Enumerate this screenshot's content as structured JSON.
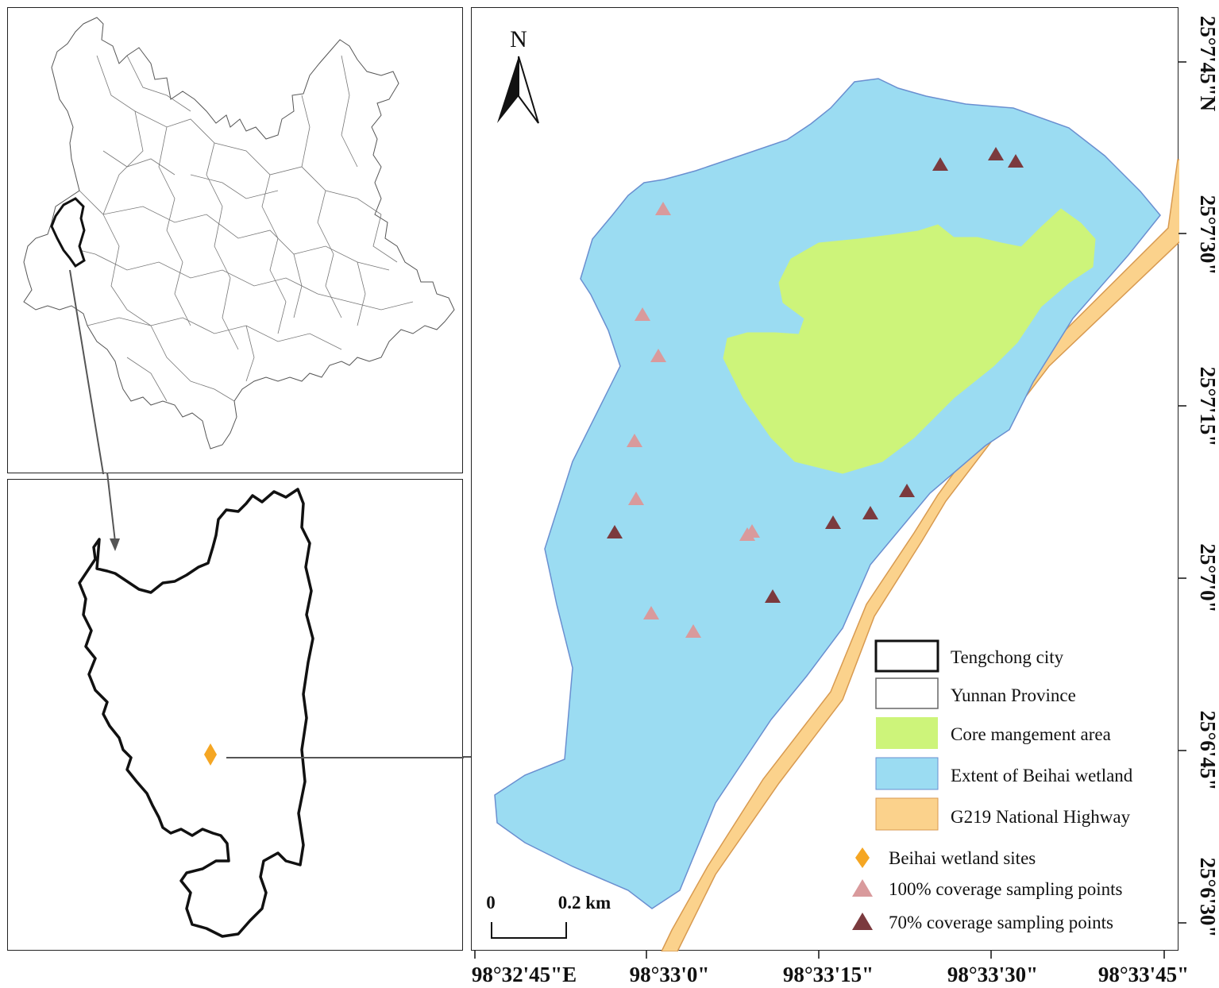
{
  "legend": {
    "items": [
      {
        "label": "Tengchong city",
        "swatch": "#ffffff",
        "border": "#111111"
      },
      {
        "label": "Yunnan Province",
        "swatch": "#ffffff",
        "border": "#666666"
      },
      {
        "label": "Core mangement area",
        "swatch": "#cdf47a",
        "border": "#cdf47a"
      },
      {
        "label": "Extent of Beihai wetland",
        "swatch": "#9bdcf2",
        "border": "#6a8fd0"
      },
      {
        "label": "G219 National Highway",
        "swatch": "#fbd28c",
        "border": "#d89a50"
      }
    ],
    "symbols": [
      {
        "label": "Beihai wetland sites",
        "shape": "diamond",
        "color": "#f5a623"
      },
      {
        "label": "100% coverage sampling points",
        "shape": "triangle",
        "color": "#d99a9c"
      },
      {
        "label": "70% coverage sampling points",
        "shape": "triangle",
        "color": "#7b3a3e"
      }
    ]
  },
  "north_arrow": {
    "label": "N"
  },
  "scale_bar": {
    "start": "0",
    "end": "0.2 km"
  },
  "axes": {
    "longitude_ticks": [
      "98°32'45\"E",
      "98°33'0\"",
      "98°33'15\"",
      "98°33'30\"",
      "98°33'45\""
    ],
    "latitude_ticks": [
      "25°7'45\"N",
      "25°7'30\"",
      "25°7'15\"",
      "25°7'0\"",
      "25°6'45\"",
      "25°6'30\""
    ]
  },
  "sampling_points": {
    "coverage_100": [
      [
        834,
        262
      ],
      [
        808,
        395
      ],
      [
        828,
        447
      ],
      [
        798,
        554
      ],
      [
        800,
        627
      ],
      [
        940,
        672
      ],
      [
        946,
        668
      ],
      [
        819,
        771
      ],
      [
        872,
        794
      ]
    ],
    "coverage_70": [
      [
        1183,
        206
      ],
      [
        1253,
        193
      ],
      [
        1278,
        202
      ],
      [
        773,
        669
      ],
      [
        1048,
        657
      ],
      [
        1095,
        645
      ],
      [
        1141,
        617
      ],
      [
        972,
        750
      ]
    ]
  },
  "colors": {
    "wetland": "#9bdcf2",
    "core": "#cdf47a",
    "highway": "#fbd28c",
    "site": "#f5a623",
    "pt100": "#d99a9c",
    "pt70": "#7b3a3e"
  }
}
